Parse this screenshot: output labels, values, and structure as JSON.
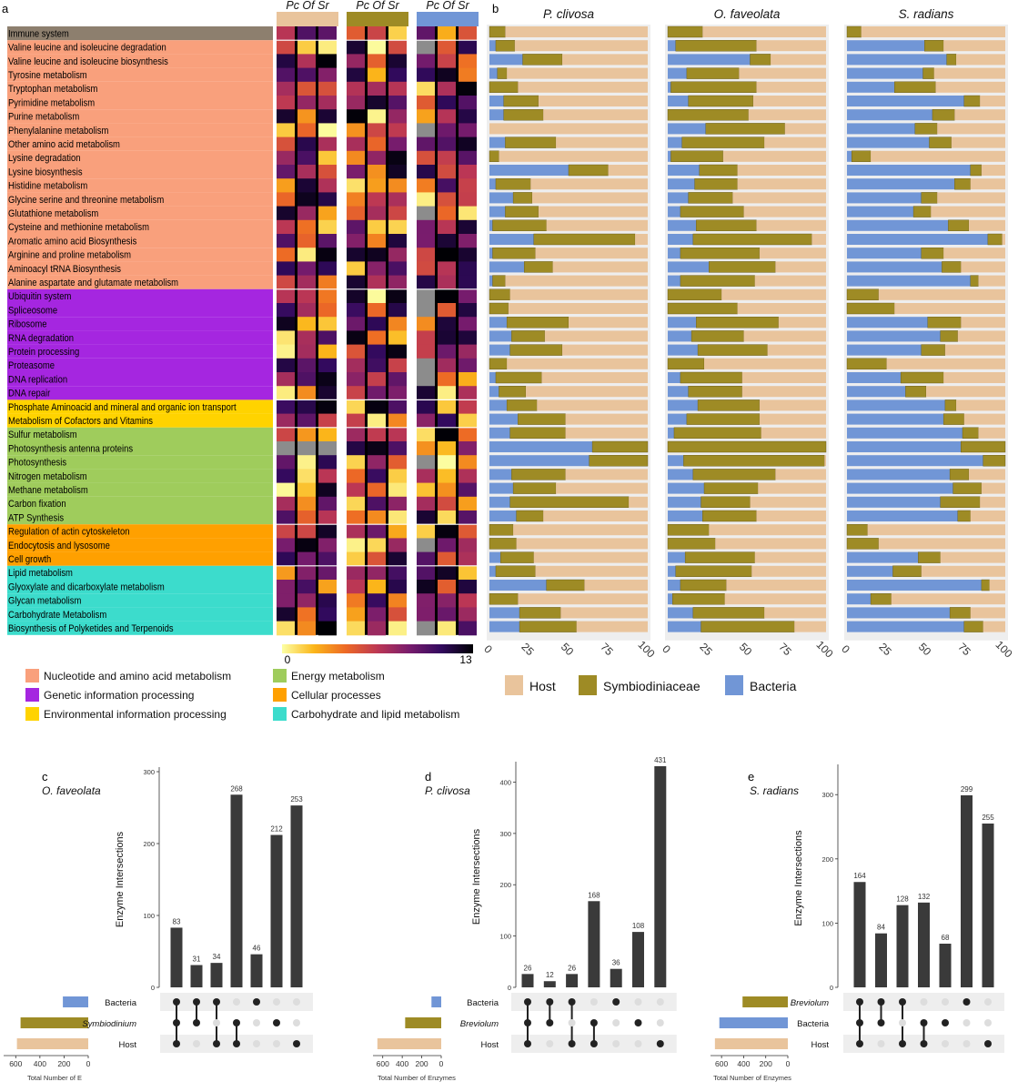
{
  "panel_letters": [
    "a",
    "b",
    "c",
    "d",
    "e"
  ],
  "colors": {
    "host": "#e9c49c",
    "symbio": "#9e8b25",
    "bacteria": "#7196d6",
    "immune": "#8d7f6e",
    "nucleotide": "#f9a07c",
    "genetic": "#a526e0",
    "environmental": "#ffd300",
    "energy": "#9fcc5c",
    "cellular": "#ffa000",
    "carbohydrate": "#3cdccc",
    "grey_cell": "#8c8c8c",
    "strip_bg": "#eeeeee",
    "upset_bar": "#3a3a3a"
  },
  "panel_a": {
    "column_groups": [
      "Pc Of Sr",
      "Pc Of Sr",
      "Pc Of Sr"
    ],
    "group_colors": [
      "#e9c49c",
      "#9e8b25",
      "#7196d6"
    ],
    "scale_min": "0",
    "scale_max": "13",
    "rows": [
      {
        "label": "Immune system",
        "cat": "immune"
      },
      {
        "label": "Valine leucine and isoleucine degradation",
        "cat": "nucleotide"
      },
      {
        "label": "Valine leucine and isoleucine biosynthesis",
        "cat": "nucleotide"
      },
      {
        "label": "Tyrosine metabolism",
        "cat": "nucleotide"
      },
      {
        "label": "Tryptophan metabolism",
        "cat": "nucleotide"
      },
      {
        "label": "Pyrimidine metabolism",
        "cat": "nucleotide"
      },
      {
        "label": "Purine metabolism",
        "cat": "nucleotide"
      },
      {
        "label": "Phenylalanine metabolism",
        "cat": "nucleotide"
      },
      {
        "label": "Other amino acid metabolism",
        "cat": "nucleotide"
      },
      {
        "label": "Lysine degradation",
        "cat": "nucleotide"
      },
      {
        "label": "Lysine biosynthesis",
        "cat": "nucleotide"
      },
      {
        "label": "Histidine metabolism",
        "cat": "nucleotide"
      },
      {
        "label": "Glycine serine and threonine metabolism",
        "cat": "nucleotide"
      },
      {
        "label": "Glutathione metabolism",
        "cat": "nucleotide"
      },
      {
        "label": "Cysteine and methionine metabolism",
        "cat": "nucleotide"
      },
      {
        "label": "Aromatic amino acid Biosynthesis",
        "cat": "nucleotide"
      },
      {
        "label": "Arginine and proline metabolism",
        "cat": "nucleotide"
      },
      {
        "label": "Aminoacyl tRNA Biosynthesis",
        "cat": "nucleotide"
      },
      {
        "label": "Alanine aspartate and glutamate metabolism",
        "cat": "nucleotide"
      },
      {
        "label": "Ubiquitin system",
        "cat": "genetic"
      },
      {
        "label": "Spliceosome",
        "cat": "genetic"
      },
      {
        "label": "Ribosome",
        "cat": "genetic"
      },
      {
        "label": "RNA degradation",
        "cat": "genetic"
      },
      {
        "label": "Protein processing",
        "cat": "genetic"
      },
      {
        "label": "Proteasome",
        "cat": "genetic"
      },
      {
        "label": "DNA replication",
        "cat": "genetic"
      },
      {
        "label": "DNA repair",
        "cat": "genetic"
      },
      {
        "label": "Phosphate Aminoacid and mineral and organic ion transport",
        "cat": "environmental"
      },
      {
        "label": "Metabolism of Cofactors and Vitamins",
        "cat": "environmental"
      },
      {
        "label": "Sulfur metabolism",
        "cat": "energy"
      },
      {
        "label": "Photosynthesis antenna proteins",
        "cat": "energy"
      },
      {
        "label": "Photosynthesis",
        "cat": "energy"
      },
      {
        "label": "Nitrogen metabolism",
        "cat": "energy"
      },
      {
        "label": "Methane metabolism",
        "cat": "energy"
      },
      {
        "label": "Carbon fixation",
        "cat": "energy"
      },
      {
        "label": "ATP Synthesis",
        "cat": "energy"
      },
      {
        "label": "Regulation of actin cytoskeleton",
        "cat": "cellular"
      },
      {
        "label": "Endocytosis and lysosome",
        "cat": "cellular"
      },
      {
        "label": "Cell growth",
        "cat": "cellular"
      },
      {
        "label": "Lipid metabolism",
        "cat": "carbohydrate"
      },
      {
        "label": "Glyoxylate and dicarboxylate metabolism",
        "cat": "carbohydrate"
      },
      {
        "label": "Glycan metabolism",
        "cat": "carbohydrate"
      },
      {
        "label": "Carbohydrate Metabolism",
        "cat": "carbohydrate"
      },
      {
        "label": "Biosynthesis of Polyketides and Terpenoids",
        "cat": "carbohydrate"
      }
    ],
    "legend": [
      {
        "label": "Nucleotide and amino acid metabolism",
        "cat": "nucleotide"
      },
      {
        "label": "Energy metabolism",
        "cat": "energy"
      },
      {
        "label": "Genetic information processing",
        "cat": "genetic"
      },
      {
        "label": "Cellular processes",
        "cat": "cellular"
      },
      {
        "label": "Environmental information processing",
        "cat": "environmental"
      },
      {
        "label": "Carbohydrate and lipid metabolism",
        "cat": "carbohydrate"
      }
    ]
  },
  "chart_data": [
    {
      "type": "bar",
      "panel": "b",
      "orientation": "horizontal-stacked",
      "facets": [
        "P. clivosa",
        "O. faveolata",
        "S. radians"
      ],
      "xlim": [
        0,
        100
      ],
      "xticks": [
        "0",
        "25",
        "50",
        "75",
        "100"
      ],
      "legend": [
        "Host",
        "Symbiodiniaceae",
        "Bacteria"
      ],
      "series_order": [
        "Bacteria",
        "Symbiodiniaceae",
        "Host"
      ],
      "bacteria": [
        [
          0,
          4,
          21,
          5,
          0,
          9,
          9,
          0,
          10,
          0,
          50,
          4,
          15,
          10,
          2,
          28,
          2,
          22,
          2,
          0,
          0,
          11,
          14,
          13,
          0,
          4,
          6,
          11,
          18,
          13,
          65,
          63,
          14,
          15,
          13,
          17,
          0,
          0,
          7,
          4,
          36,
          0,
          19,
          19
        ],
        [
          0,
          5,
          52,
          12,
          2,
          13,
          0,
          24,
          9,
          2,
          20,
          17,
          13,
          8,
          18,
          16,
          8,
          26,
          8,
          0,
          0,
          18,
          15,
          19,
          0,
          8,
          13,
          19,
          12,
          4,
          0,
          10,
          16,
          23,
          21,
          22,
          0,
          0,
          11,
          5,
          8,
          3,
          16,
          21
        ],
        [
          0,
          49,
          63,
          48,
          30,
          74,
          54,
          43,
          52,
          3,
          78,
          68,
          47,
          42,
          64,
          89,
          47,
          60,
          78,
          0,
          0,
          51,
          59,
          47,
          0,
          34,
          37,
          62,
          61,
          73,
          72,
          86,
          65,
          67,
          59,
          70,
          0,
          0,
          45,
          29,
          85,
          15,
          65,
          74
        ]
      ],
      "symbiodiniaceae": [
        [
          10,
          12,
          25,
          6,
          18,
          22,
          25,
          0,
          32,
          6,
          25,
          22,
          12,
          21,
          34,
          64,
          27,
          18,
          8,
          13,
          12,
          39,
          21,
          33,
          11,
          29,
          17,
          19,
          30,
          35,
          35,
          37,
          34,
          27,
          75,
          17,
          15,
          17,
          21,
          25,
          24,
          18,
          26,
          36
        ],
        [
          22,
          51,
          13,
          33,
          54,
          41,
          51,
          50,
          52,
          33,
          24,
          27,
          28,
          40,
          38,
          75,
          50,
          42,
          47,
          34,
          44,
          52,
          33,
          44,
          23,
          39,
          34,
          39,
          46,
          55,
          100,
          89,
          52,
          34,
          31,
          34,
          26,
          30,
          44,
          48,
          29,
          33,
          45,
          59
        ],
        [
          9,
          12,
          6,
          7,
          26,
          10,
          14,
          14,
          14,
          12,
          7,
          10,
          10,
          11,
          13,
          9,
          14,
          12,
          5,
          20,
          30,
          21,
          11,
          15,
          25,
          27,
          13,
          7,
          13,
          10,
          28,
          14,
          12,
          18,
          25,
          8,
          13,
          20,
          14,
          18,
          5,
          13,
          13,
          12
        ]
      ],
      "host_note": "Host = 100 - Bacteria - Symbiodiniaceae"
    },
    {
      "type": "bar",
      "panel": "c",
      "title": "O. faveolata",
      "ylabel": "Enzyme Intersections",
      "ylim": [
        0,
        300
      ],
      "yticks": [
        "0",
        "100",
        "200",
        "300"
      ],
      "values": [
        83,
        31,
        34,
        268,
        46,
        212,
        253
      ],
      "value_labels": [
        "83",
        "31",
        "34",
        "268",
        "46",
        "212",
        "253"
      ],
      "sets": [
        "Bacteria",
        "Symbiodinium",
        "Host"
      ],
      "set_colors": [
        "bacteria",
        "symbio",
        "host"
      ],
      "set_sizes": [
        210,
        560,
        590
      ],
      "set_xticks": [
        "600",
        "400",
        "200",
        "0"
      ],
      "set_xlabel": "Total Number of E",
      "matrix": [
        [
          1,
          1,
          1
        ],
        [
          1,
          1,
          0
        ],
        [
          1,
          0,
          1
        ],
        [
          0,
          1,
          1
        ],
        [
          1,
          0,
          0
        ],
        [
          0,
          1,
          0
        ],
        [
          0,
          0,
          1
        ]
      ]
    },
    {
      "type": "bar",
      "panel": "d",
      "title": "P. clivosa",
      "ylabel": "Enzyme Intersections",
      "ylim": [
        0,
        431
      ],
      "yticks": [
        "0",
        "100",
        "200",
        "300",
        "400"
      ],
      "values": [
        26,
        12,
        26,
        168,
        36,
        108,
        431
      ],
      "value_labels": [
        "26",
        "12",
        "26",
        "168",
        "36",
        "108",
        "431"
      ],
      "sets": [
        "Bacteria",
        "Breviolum",
        "Host"
      ],
      "set_colors": [
        "bacteria",
        "symbio",
        "host"
      ],
      "set_sizes": [
        100,
        370,
        655
      ],
      "set_xticks": [
        "600",
        "400",
        "200",
        "0"
      ],
      "set_xlabel": "Total Number of Enzymes",
      "matrix": [
        [
          1,
          1,
          1
        ],
        [
          1,
          1,
          0
        ],
        [
          1,
          0,
          1
        ],
        [
          0,
          1,
          1
        ],
        [
          1,
          0,
          0
        ],
        [
          0,
          1,
          0
        ],
        [
          0,
          0,
          1
        ]
      ]
    },
    {
      "type": "bar",
      "panel": "e",
      "title": "S. radians",
      "ylabel": "Enzyme Intersections",
      "ylim": [
        0,
        340
      ],
      "yticks": [
        "0",
        "100",
        "200",
        "300"
      ],
      "values": [
        164,
        84,
        128,
        132,
        68,
        299,
        255
      ],
      "value_labels": [
        "164",
        "84",
        "128",
        "132",
        "68",
        "299",
        "255"
      ],
      "sets": [
        "Breviolum",
        "Bacteria",
        "Host"
      ],
      "set_colors": [
        "symbio",
        "bacteria",
        "host"
      ],
      "set_sizes": [
        410,
        620,
        660
      ],
      "set_xticks": [
        "600",
        "400",
        "200",
        "0"
      ],
      "set_xlabel": "Total Number of Enzymes",
      "matrix": [
        [
          1,
          1,
          1
        ],
        [
          1,
          1,
          0
        ],
        [
          1,
          0,
          1
        ],
        [
          0,
          1,
          1
        ],
        [
          0,
          1,
          0
        ],
        [
          1,
          0,
          0
        ],
        [
          0,
          0,
          1
        ]
      ]
    }
  ]
}
